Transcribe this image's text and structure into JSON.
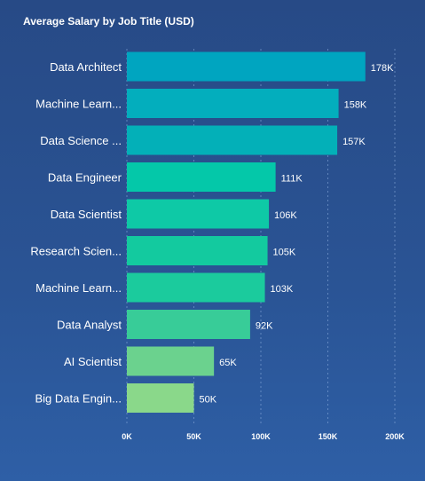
{
  "chart_data": {
    "type": "bar",
    "orientation": "horizontal",
    "title": "Average Salary by Job Title (USD)",
    "xlabel": "",
    "ylabel": "",
    "xlim": [
      0,
      200000
    ],
    "grid": true,
    "categories": [
      "Data Architect",
      "Machine Learn...",
      "Data Science ...",
      "Data Engineer",
      "Data Scientist",
      "Research Scien...",
      "Machine Learn...",
      "Data Analyst",
      "AI Scientist",
      "Big Data Engin..."
    ],
    "values": [
      178000,
      158000,
      157000,
      111000,
      106000,
      105000,
      103000,
      92000,
      65000,
      50000
    ],
    "value_labels": [
      "178K",
      "158K",
      "157K",
      "111K",
      "106K",
      "105K",
      "103K",
      "92K",
      "65K",
      "50K"
    ],
    "ticks": [
      0,
      50000,
      100000,
      150000,
      200000
    ],
    "tick_labels": [
      "0K",
      "50K",
      "100K",
      "150K",
      "200K"
    ],
    "bar_colors": [
      "#00a5c0",
      "#03aebd",
      "#03b0b8",
      "#04c8a9",
      "#0ec9a6",
      "#13ca9f",
      "#1bcb9d",
      "#38cc98",
      "#6bd28e",
      "#8ad88a"
    ]
  }
}
